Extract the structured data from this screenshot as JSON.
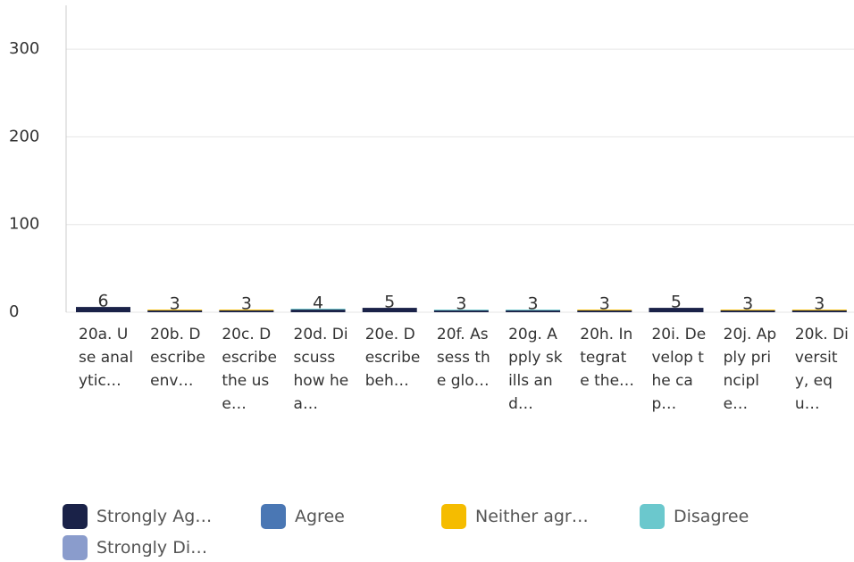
{
  "chart_data": {
    "type": "stacked_bar",
    "categories": [
      "20a. Use analytic…",
      "20b. Describe env…",
      "20c. Describe the use…",
      "20d. Discuss how hea…",
      "20e. Describe beh…",
      "20f. Assess the glo…",
      "20g. Apply skills and…",
      "20h. Integrate the…",
      "20i. Develop the cap…",
      "20j. Apply principle…",
      "20k. Diversity, equ…"
    ],
    "series": [
      {
        "name": "Strongly Ag…",
        "color": "#1a2248",
        "values": [
          6,
          2,
          2,
          3,
          5,
          2,
          2,
          2,
          5,
          2,
          2
        ]
      },
      {
        "name": "Agree",
        "color": "#4a77b4",
        "values": [
          0,
          0,
          0,
          0,
          0,
          0,
          0,
          0,
          0,
          0,
          0
        ]
      },
      {
        "name": "Neither agr…",
        "color": "#f5bc00",
        "values": [
          0,
          1,
          1,
          0,
          0,
          0,
          0,
          1,
          0,
          1,
          1
        ]
      },
      {
        "name": "Disagree",
        "color": "#6bc8cd",
        "values": [
          0,
          0,
          0,
          1,
          0,
          1,
          1,
          0,
          0,
          0,
          0
        ]
      },
      {
        "name": "Strongly Di…",
        "color": "#8a9ccc",
        "values": [
          0,
          0,
          0,
          0,
          0,
          0,
          0,
          0,
          0,
          0,
          0
        ]
      }
    ],
    "totals": [
      6,
      3,
      3,
      4,
      5,
      3,
      3,
      3,
      5,
      3,
      3
    ],
    "ylim": [
      0,
      350
    ],
    "yticks": [
      0,
      100,
      200,
      300
    ],
    "grid": true,
    "legend": "bottom"
  }
}
